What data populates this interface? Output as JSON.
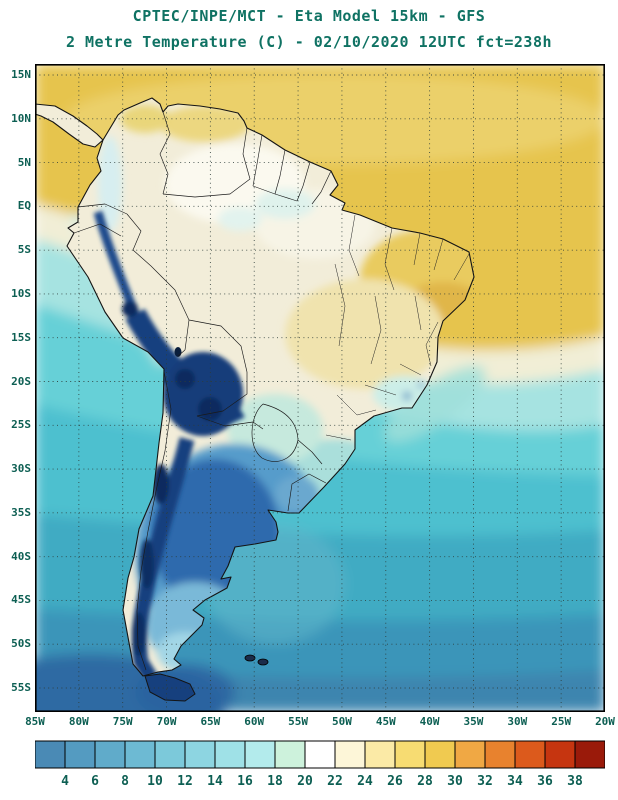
{
  "title": {
    "line1": "CPTEC/INPE/MCT -  Eta Model 15km - GFS",
    "line2": "2 Metre Temperature (C) - 02/10/2020 12UTC fct=238h"
  },
  "map": {
    "lat_labels": [
      "15N",
      "10N",
      "5N",
      "EQ",
      "5S",
      "10S",
      "15S",
      "20S",
      "25S",
      "30S",
      "35S",
      "40S",
      "45S",
      "50S",
      "55S"
    ],
    "lon_labels": [
      "85W",
      "80W",
      "75W",
      "70W",
      "65W",
      "60W",
      "55W",
      "50W",
      "45W",
      "40W",
      "35W",
      "30W",
      "25W",
      "20W"
    ]
  },
  "colorbar": {
    "tick_labels": [
      "4",
      "6",
      "8",
      "10",
      "12",
      "14",
      "16",
      "18",
      "20",
      "22",
      "24",
      "26",
      "28",
      "30",
      "32",
      "34",
      "36",
      "38"
    ],
    "segment_colors": [
      "#4a8ab5",
      "#549bc1",
      "#60abca",
      "#6dbad3",
      "#7cc9da",
      "#8dd5e1",
      "#9fe1e7",
      "#b3ebec",
      "#cdf2dc",
      "#ffffff",
      "#fdf6d8",
      "#fbeaa6",
      "#f7dc72",
      "#f0ca50",
      "#f0a844",
      "#e8822e",
      "#dc5a1c",
      "#c63510",
      "#9a1a0a"
    ]
  },
  "colors": {
    "title_text": "#0f7263",
    "axis_text": "#0d5f53",
    "frame": "#000000",
    "warm_ocean": "#e6c44d",
    "cold_land": "#16407e"
  }
}
